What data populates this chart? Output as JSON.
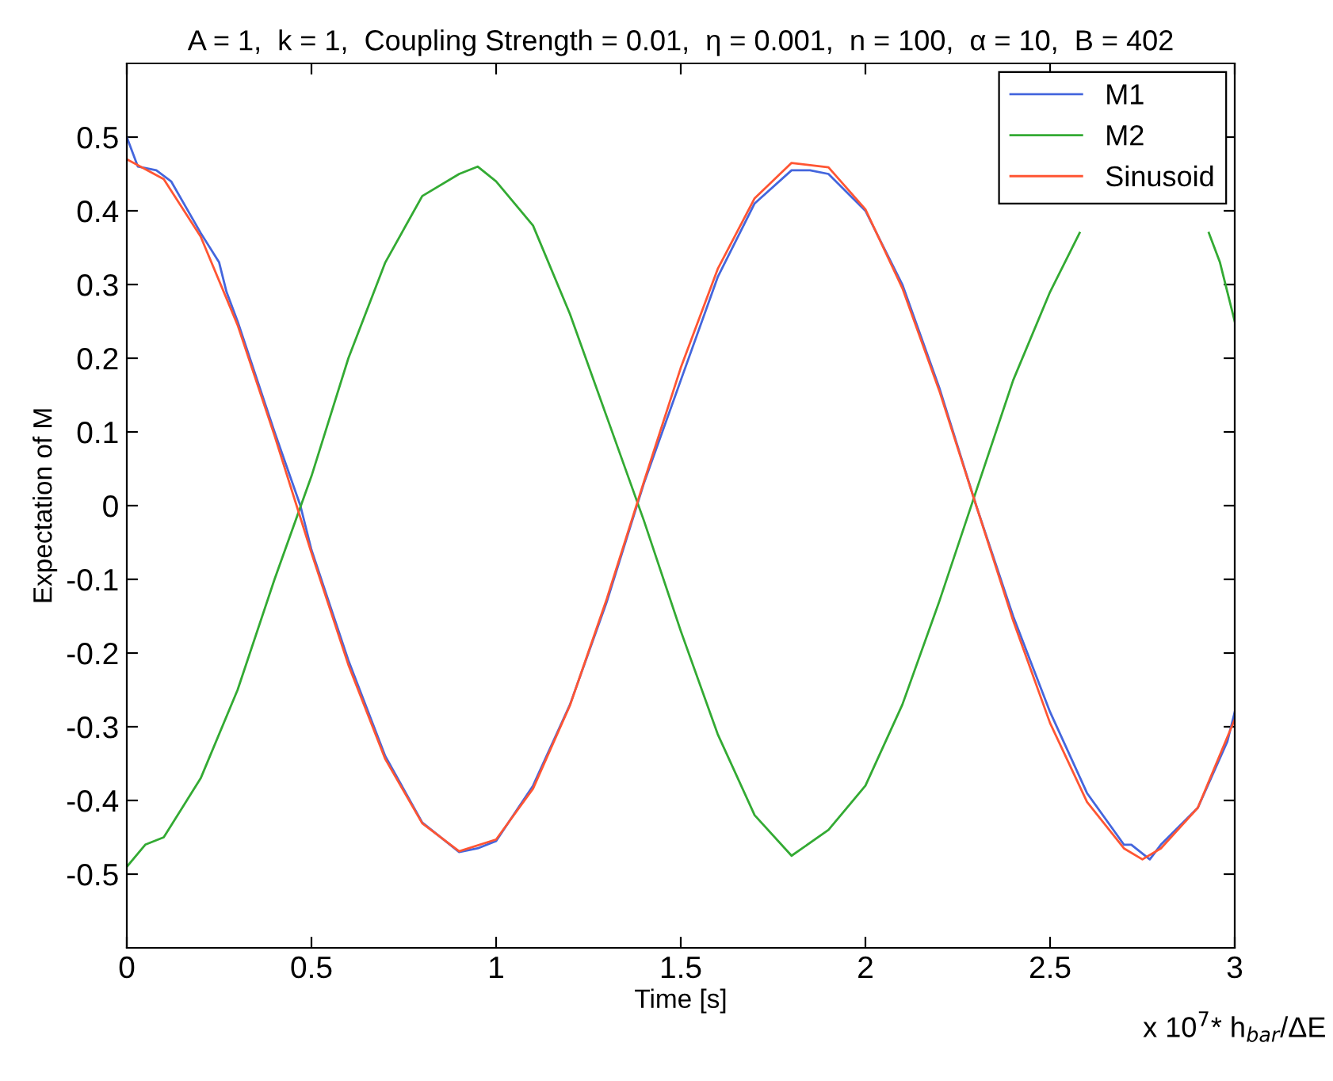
{
  "chart_data": {
    "type": "line",
    "title": "A = 1,  k = 1,  Coupling Strength = 0.01,  η = 0.001,  n = 100,  α = 10,  B = 402",
    "xlabel": "Time [s]",
    "ylabel": "Expectation of M",
    "annotations": [
      "x 10$^{7}$* h$_{bar}$/ΔE"
    ],
    "xlim": [
      0,
      3
    ],
    "xticks": [
      0,
      0.5,
      1,
      1.5,
      2,
      2.5,
      3
    ],
    "ylim": [
      -0.6,
      0.6
    ],
    "yticks": [
      -0.5,
      -0.4,
      -0.3,
      -0.2,
      -0.1,
      0,
      0.1,
      0.2,
      0.3,
      0.4,
      0.5
    ],
    "grid": false,
    "legend": "top right",
    "marker": "none",
    "line_style": "solid",
    "series": [
      {
        "name": "M1",
        "color": "#4466dd",
        "x": [
          0,
          0.03,
          0.08,
          0.12,
          0.2,
          0.25,
          0.27,
          0.3,
          0.4,
          0.47,
          0.5,
          0.6,
          0.7,
          0.8,
          0.9,
          0.95,
          1.0,
          1.1,
          1.2,
          1.3,
          1.4,
          1.5,
          1.6,
          1.7,
          1.8,
          1.85,
          1.9,
          2.0,
          2.1,
          2.2,
          2.3,
          2.4,
          2.5,
          2.6,
          2.7,
          2.72,
          2.77,
          2.8,
          2.9,
          2.98,
          3.0
        ],
        "values": [
          0.5,
          0.46,
          0.455,
          0.44,
          0.37,
          0.33,
          0.29,
          0.25,
          0.1,
          0.0,
          -0.06,
          -0.21,
          -0.34,
          -0.43,
          -0.47,
          -0.465,
          -0.455,
          -0.38,
          -0.27,
          -0.13,
          0.03,
          0.17,
          0.31,
          0.41,
          0.455,
          0.455,
          0.45,
          0.4,
          0.3,
          0.16,
          0.0,
          -0.15,
          -0.28,
          -0.39,
          -0.46,
          -0.46,
          -0.48,
          -0.46,
          -0.41,
          -0.32,
          -0.28
        ]
      },
      {
        "name": "M2",
        "color": "#33aa33",
        "x": [
          0,
          0.05,
          0.1,
          0.2,
          0.3,
          0.4,
          0.5,
          0.6,
          0.7,
          0.8,
          0.9,
          0.95,
          1.0,
          1.1,
          1.2,
          1.3,
          1.4,
          1.5,
          1.6,
          1.7,
          1.8,
          1.9,
          2.0,
          2.1,
          2.2,
          2.3,
          2.4,
          2.5,
          2.58,
          2.6,
          2.7,
          2.8,
          2.9,
          2.93,
          2.96,
          3.0
        ],
        "values": [
          -0.49,
          -0.46,
          -0.45,
          -0.37,
          -0.25,
          -0.1,
          0.04,
          0.2,
          0.33,
          0.42,
          0.45,
          0.46,
          0.44,
          0.38,
          0.26,
          0.12,
          -0.02,
          -0.17,
          -0.31,
          -0.42,
          -0.475,
          -0.44,
          -0.38,
          -0.27,
          -0.13,
          0.02,
          0.17,
          0.29,
          0.37,
          null,
          null,
          null,
          null,
          0.37,
          0.33,
          0.25
        ]
      },
      {
        "name": "Sinusoid",
        "color": "#ff5533",
        "x": [
          0,
          0.1,
          0.2,
          0.3,
          0.4,
          0.5,
          0.6,
          0.7,
          0.8,
          0.9,
          1.0,
          1.1,
          1.2,
          1.3,
          1.4,
          1.5,
          1.6,
          1.7,
          1.8,
          1.9,
          2.0,
          2.1,
          2.2,
          2.3,
          2.4,
          2.5,
          2.6,
          2.7,
          2.75,
          2.8,
          2.9,
          3.0
        ],
        "values": [
          0.47,
          0.443,
          0.365,
          0.245,
          0.095,
          -0.064,
          -0.216,
          -0.344,
          -0.431,
          -0.469,
          -0.453,
          -0.384,
          -0.271,
          -0.126,
          0.032,
          0.187,
          0.321,
          0.417,
          0.465,
          0.459,
          0.402,
          0.295,
          0.156,
          0.0,
          -0.156,
          -0.295,
          -0.402,
          -0.465,
          -0.48,
          -0.465,
          -0.41,
          -0.29
        ]
      }
    ]
  }
}
